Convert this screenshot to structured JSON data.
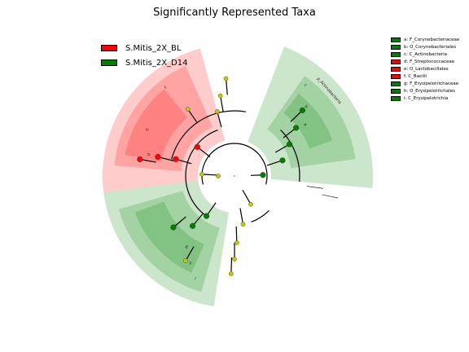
{
  "chart_data": {
    "type": "cladogram",
    "title": "Significantly Represented Taxa",
    "groups": [
      {
        "name": "S.Mitis_2X_BL",
        "color": "#ff0000"
      },
      {
        "name": "S.Mitis_2X_D14",
        "color": "#008000"
      }
    ],
    "clades": [
      {
        "letter": "a",
        "label": "a: F_Corynebacteriaceae",
        "group": "S.Mitis_2X_D14",
        "level": 5
      },
      {
        "letter": "b",
        "label": "b: O_Corynebacteriales",
        "group": "S.Mitis_2X_D14",
        "level": 4
      },
      {
        "letter": "c",
        "label": "c: C_Actinobacteria",
        "group": "S.Mitis_2X_D14",
        "level": 3
      },
      {
        "letter": "d",
        "label": "d: F_Streptococcaceae",
        "group": "S.Mitis_2X_BL",
        "level": 5
      },
      {
        "letter": "e",
        "label": "e: O_Lactobacillales",
        "group": "S.Mitis_2X_BL",
        "level": 4
      },
      {
        "letter": "f",
        "label": "f: C_Bacilli",
        "group": "S.Mitis_2X_BL",
        "level": 3
      },
      {
        "letter": "g",
        "label": "g: F_Erysipelotrichaceae",
        "group": "S.Mitis_2X_D14",
        "level": 5
      },
      {
        "letter": "h",
        "label": "h: O_Erysipelotrichales",
        "group": "S.Mitis_2X_D14",
        "level": 4
      },
      {
        "letter": "i",
        "label": "i: C_Erysipelotrichia",
        "group": "S.Mitis_2X_D14",
        "level": 3
      }
    ],
    "phylum_label": "p_Actinobacteria",
    "colors": {
      "bl": "#ff0000",
      "d14": "#008000",
      "nonsig": "#c8c800",
      "branch": "#000000",
      "background": "#ffffff"
    }
  }
}
